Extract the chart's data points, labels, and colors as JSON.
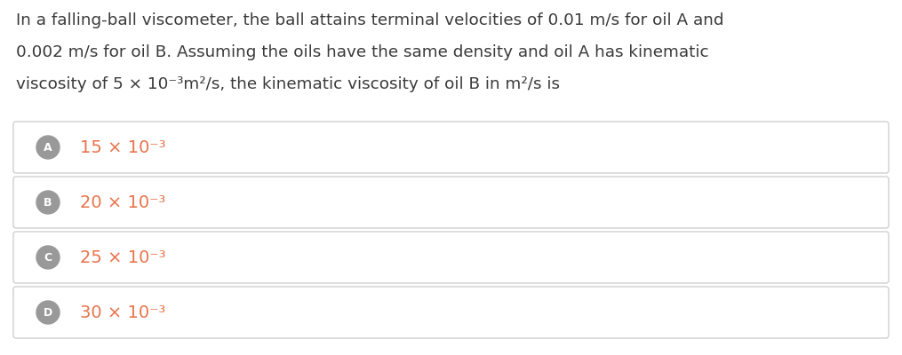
{
  "background_color": "#ffffff",
  "question_lines": [
    "In a falling-ball viscometer, the ball attains terminal velocities of 0.01 m/s for oil A and",
    "0.002 m/s for oil B. Assuming the oils have the same density and oil A has kinematic",
    "viscosity of 5 × 10⁻³m²/s, the kinematic viscosity of oil B in m²/s is"
  ],
  "options": [
    {
      "label": "A",
      "text": "15 × 10⁻³"
    },
    {
      "label": "B",
      "text": "20 × 10⁻³"
    },
    {
      "label": "C",
      "text": "25 × 10⁻³"
    },
    {
      "label": "D",
      "text": "30 × 10⁻³"
    }
  ],
  "question_font_size": 13.2,
  "option_font_size": 14.0,
  "question_text_color": "#3a3a3a",
  "option_text_color": "#e8734a",
  "circle_bg_color": "#999999",
  "circle_text_color": "#ffffff",
  "box_edge_color": "#d0d0d0",
  "box_face_color": "#ffffff"
}
